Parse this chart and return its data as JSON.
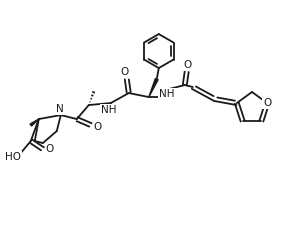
{
  "background": "#ffffff",
  "line_color": "#1a1a1a",
  "lw": 1.3,
  "fs": 7.5,
  "fig_w": 3.0,
  "fig_h": 2.36,
  "dpi": 100,
  "xlim": [
    0,
    300
  ],
  "ylim": [
    0,
    236
  ]
}
